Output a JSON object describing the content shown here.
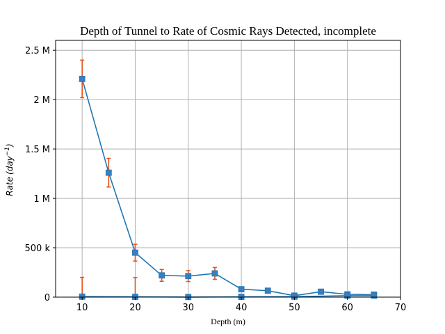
{
  "chart_data": {
    "type": "line",
    "title": "Depth of Tunnel to Rate of Cosmic Rays Detected, incomplete",
    "xlabel": "Depth (m)",
    "ylabel": "Rate",
    "ylabel_unit": "(day",
    "ylabel_exp": "−1",
    "ylabel_close": ")",
    "xlim": [
      5,
      70
    ],
    "ylim": [
      0,
      2600000
    ],
    "grid": true,
    "xticks": [
      10,
      20,
      30,
      40,
      50,
      60,
      70
    ],
    "xtick_labels": [
      "10",
      "20",
      "30",
      "40",
      "50",
      "60",
      "70"
    ],
    "yticks": [
      0,
      500000,
      1000000,
      1500000,
      2000000,
      2500000
    ],
    "ytick_labels": [
      "0",
      "500 k",
      "1 M",
      "1.5 M",
      "2 M",
      "2.5 M"
    ],
    "series": [
      {
        "x": [
          10,
          15,
          20,
          25,
          30,
          35,
          40,
          45,
          50,
          55,
          60,
          65
        ],
        "y": [
          2210000,
          1260000,
          450000,
          220000,
          213000,
          240000,
          80000,
          65000,
          15000,
          55000,
          28000,
          25000
        ],
        "yerr": [
          190000,
          145000,
          85000,
          60000,
          55000,
          60000,
          18000,
          14000,
          8000,
          12000,
          6000,
          5000
        ]
      },
      {
        "x": [
          10,
          20,
          30,
          40,
          50,
          60,
          65
        ],
        "y": [
          5000,
          3000,
          1000,
          3000,
          5000,
          15000,
          15000
        ],
        "yerr": [
          195000,
          195000,
          0,
          0,
          0,
          0,
          0
        ]
      }
    ],
    "colors": {
      "line": "#1f77b4",
      "marker": "#3a7ebf",
      "errorbar": "#e8511f",
      "grid": "#b0b0b0"
    }
  }
}
